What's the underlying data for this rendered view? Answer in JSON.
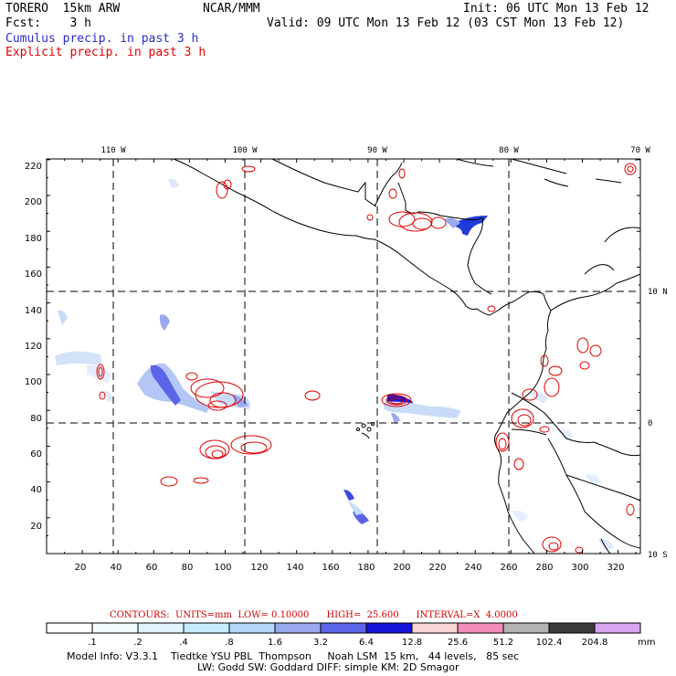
{
  "header": {
    "model": "TORERO  15km ARW",
    "center": "NCAR/MMM",
    "init": "Init: 06 UTC Mon 13 Feb 12",
    "fcst": "Fcst:    3 h",
    "valid": "Valid: 09 UTC Mon 13 Feb 12 (03 CST Mon 13 Feb 12)",
    "legend_cumulus": "Cumulus precip. in past 3 h",
    "legend_explicit": "Explicit precip. in past 3 h"
  },
  "map": {
    "top_lon_labels": [
      "110 W",
      "100 W",
      "90 W",
      "80 W",
      "70 W"
    ],
    "right_lat_labels": [
      "10 N",
      "0",
      "10 S"
    ],
    "left_ticks": [
      "220",
      "200",
      "180",
      "160",
      "140",
      "120",
      "100",
      "80",
      "60",
      "40",
      "20"
    ],
    "bottom_ticks": [
      "20",
      "40",
      "60",
      "80",
      "100",
      "120",
      "140",
      "160",
      "180",
      "200",
      "220",
      "240",
      "260",
      "280",
      "300",
      "320"
    ]
  },
  "contours": {
    "text": "CONTOURS:  UNITS=mm  LOW= 0.10000      HIGH=  25.600      INTERVAL=X  4.0000"
  },
  "colorbar": {
    "labels": [
      ".1",
      ".2",
      ".4",
      ".8",
      "1.6",
      "3.2",
      "6.4",
      "12.8",
      "25.6",
      "51.2",
      "102.4",
      "204.8"
    ],
    "unit": "mm",
    "colors": [
      "#ffffff",
      "#f2fbff",
      "#e0f4ff",
      "#c8ecff",
      "#b4d8f8",
      "#9aa8f0",
      "#5c64e8",
      "#1414d8",
      "#fad6d6",
      "#f08cb8",
      "#b4b4b4",
      "#3c3c3c",
      "#d8a4f0"
    ]
  },
  "footer": {
    "line1": "Model Info: V3.3.1    Tiedtke YSU PBL  Thompson     Noah LSM  15 km,   44 levels,   85 sec",
    "line2": "LW: Godd SW: Goddard DIFF: simple KM: 2D Smagor"
  }
}
